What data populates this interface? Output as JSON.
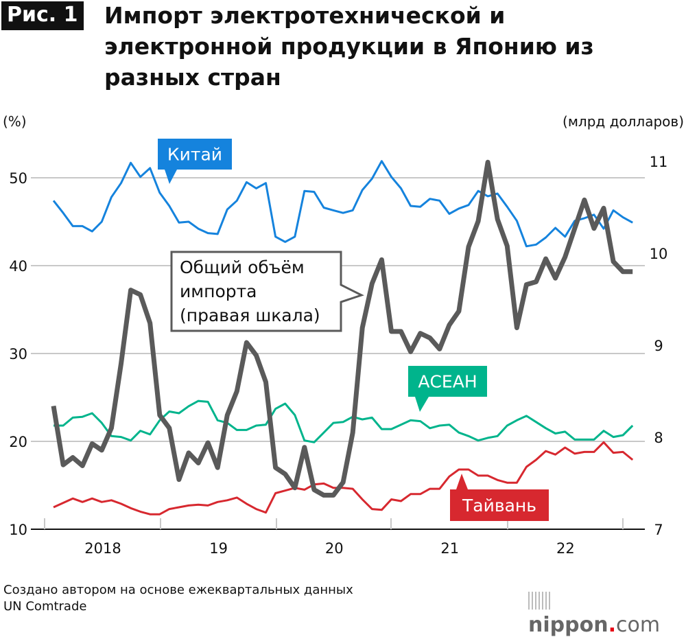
{
  "figure_label": "Рис. 1",
  "source_note_line1": "Создано автором на основе ежеквартальных данных",
  "source_note_line2": "UN Comtrade",
  "logo": {
    "main": "nippon",
    "dot": ".",
    "suffix": "com"
  },
  "chart_data": {
    "type": "line",
    "title": "Импорт электротехнической и электронной продукции в Японию из разных стран",
    "ylabel_left": "(%)",
    "ylabel_right": "(млрд долларов)",
    "ylim_left": [
      10,
      52
    ],
    "ylim_right": [
      7,
      11.2
    ],
    "yticks_left": [
      "10",
      "20",
      "30",
      "40",
      "50"
    ],
    "yticks_right": [
      "7",
      "8",
      "9",
      "10",
      "11"
    ],
    "xtick_labels": [
      "2018",
      "19",
      "20",
      "21",
      "22"
    ],
    "x": "monthly points, Jan 2018 – Jan 2023 (61 points)",
    "grid": true,
    "colors": {
      "china": "#1583dd",
      "asean": "#00b48c",
      "taiwan": "#d7282f",
      "total": "#5a5a5a"
    },
    "series": [
      {
        "key": "china",
        "name": "Китай",
        "axis": "left",
        "values": [
          47.4,
          46.0,
          44.5,
          44.5,
          43.9,
          45.0,
          47.8,
          49.4,
          51.7,
          50.1,
          51.1,
          48.3,
          46.8,
          44.9,
          45.0,
          44.2,
          43.7,
          43.6,
          46.4,
          47.4,
          49.5,
          48.8,
          49.4,
          43.3,
          42.7,
          43.3,
          48.5,
          48.4,
          46.6,
          46.3,
          46.0,
          46.3,
          48.6,
          49.9,
          51.9,
          50.1,
          48.8,
          46.8,
          46.7,
          47.6,
          47.4,
          45.9,
          46.5,
          46.9,
          48.5,
          47.9,
          48.2,
          46.7,
          45.1,
          42.2,
          42.4,
          43.2,
          44.3,
          43.3,
          45.1,
          45.4,
          45.8,
          44.2,
          46.3,
          45.5,
          44.9
        ]
      },
      {
        "key": "asean",
        "name": "АСЕАН",
        "axis": "left",
        "values": [
          21.8,
          21.8,
          22.7,
          22.8,
          23.2,
          22.1,
          20.6,
          20.5,
          20.1,
          21.2,
          20.8,
          22.4,
          23.4,
          23.2,
          24.0,
          24.6,
          24.5,
          22.4,
          22.1,
          21.3,
          21.3,
          21.8,
          21.9,
          23.7,
          24.3,
          23.0,
          20.1,
          19.9,
          21.0,
          22.1,
          22.2,
          22.8,
          22.5,
          22.7,
          21.4,
          21.4,
          21.9,
          22.4,
          22.3,
          21.5,
          21.8,
          21.9,
          21.0,
          20.6,
          20.1,
          20.4,
          20.6,
          21.8,
          22.4,
          22.9,
          22.2,
          21.5,
          20.9,
          21.1,
          20.2,
          20.2,
          20.2,
          21.2,
          20.5,
          20.7,
          21.8
        ]
      },
      {
        "key": "taiwan",
        "name": "Тайвань",
        "axis": "left",
        "values": [
          12.5,
          13.0,
          13.5,
          13.1,
          13.5,
          13.1,
          13.3,
          12.9,
          12.4,
          12.0,
          11.7,
          11.7,
          12.3,
          12.5,
          12.7,
          12.8,
          12.7,
          13.1,
          13.3,
          13.6,
          12.9,
          12.3,
          11.9,
          14.1,
          14.4,
          14.7,
          14.5,
          15.1,
          15.2,
          14.7,
          14.7,
          14.6,
          13.4,
          12.3,
          12.2,
          13.4,
          13.2,
          14.0,
          14.0,
          14.6,
          14.6,
          16.0,
          16.8,
          16.8,
          16.1,
          16.1,
          15.6,
          15.3,
          15.3,
          17.1,
          17.9,
          18.9,
          18.5,
          19.3,
          18.6,
          18.8,
          18.8,
          19.9,
          18.7,
          18.8,
          17.9
        ]
      },
      {
        "key": "total",
        "name": "Общий объём импорта (правая шкала)",
        "name_lines": [
          "Общий объём",
          "импорта",
          "(правая шкала)"
        ],
        "axis": "right",
        "values": [
          8.34,
          7.7,
          7.78,
          7.69,
          7.93,
          7.86,
          8.1,
          8.8,
          9.6,
          9.55,
          9.24,
          8.24,
          8.1,
          7.54,
          7.83,
          7.72,
          7.94,
          7.67,
          8.24,
          8.5,
          9.03,
          8.89,
          8.6,
          7.67,
          7.6,
          7.45,
          7.89,
          7.43,
          7.37,
          7.37,
          7.51,
          8.05,
          9.19,
          9.67,
          9.93,
          9.15,
          9.15,
          8.93,
          9.13,
          9.08,
          8.96,
          9.22,
          9.37,
          10.07,
          10.35,
          10.99,
          10.37,
          10.08,
          9.19,
          9.66,
          9.69,
          9.94,
          9.73,
          9.96,
          10.27,
          10.58,
          10.27,
          10.49,
          9.91,
          9.8,
          9.8
        ]
      }
    ]
  }
}
